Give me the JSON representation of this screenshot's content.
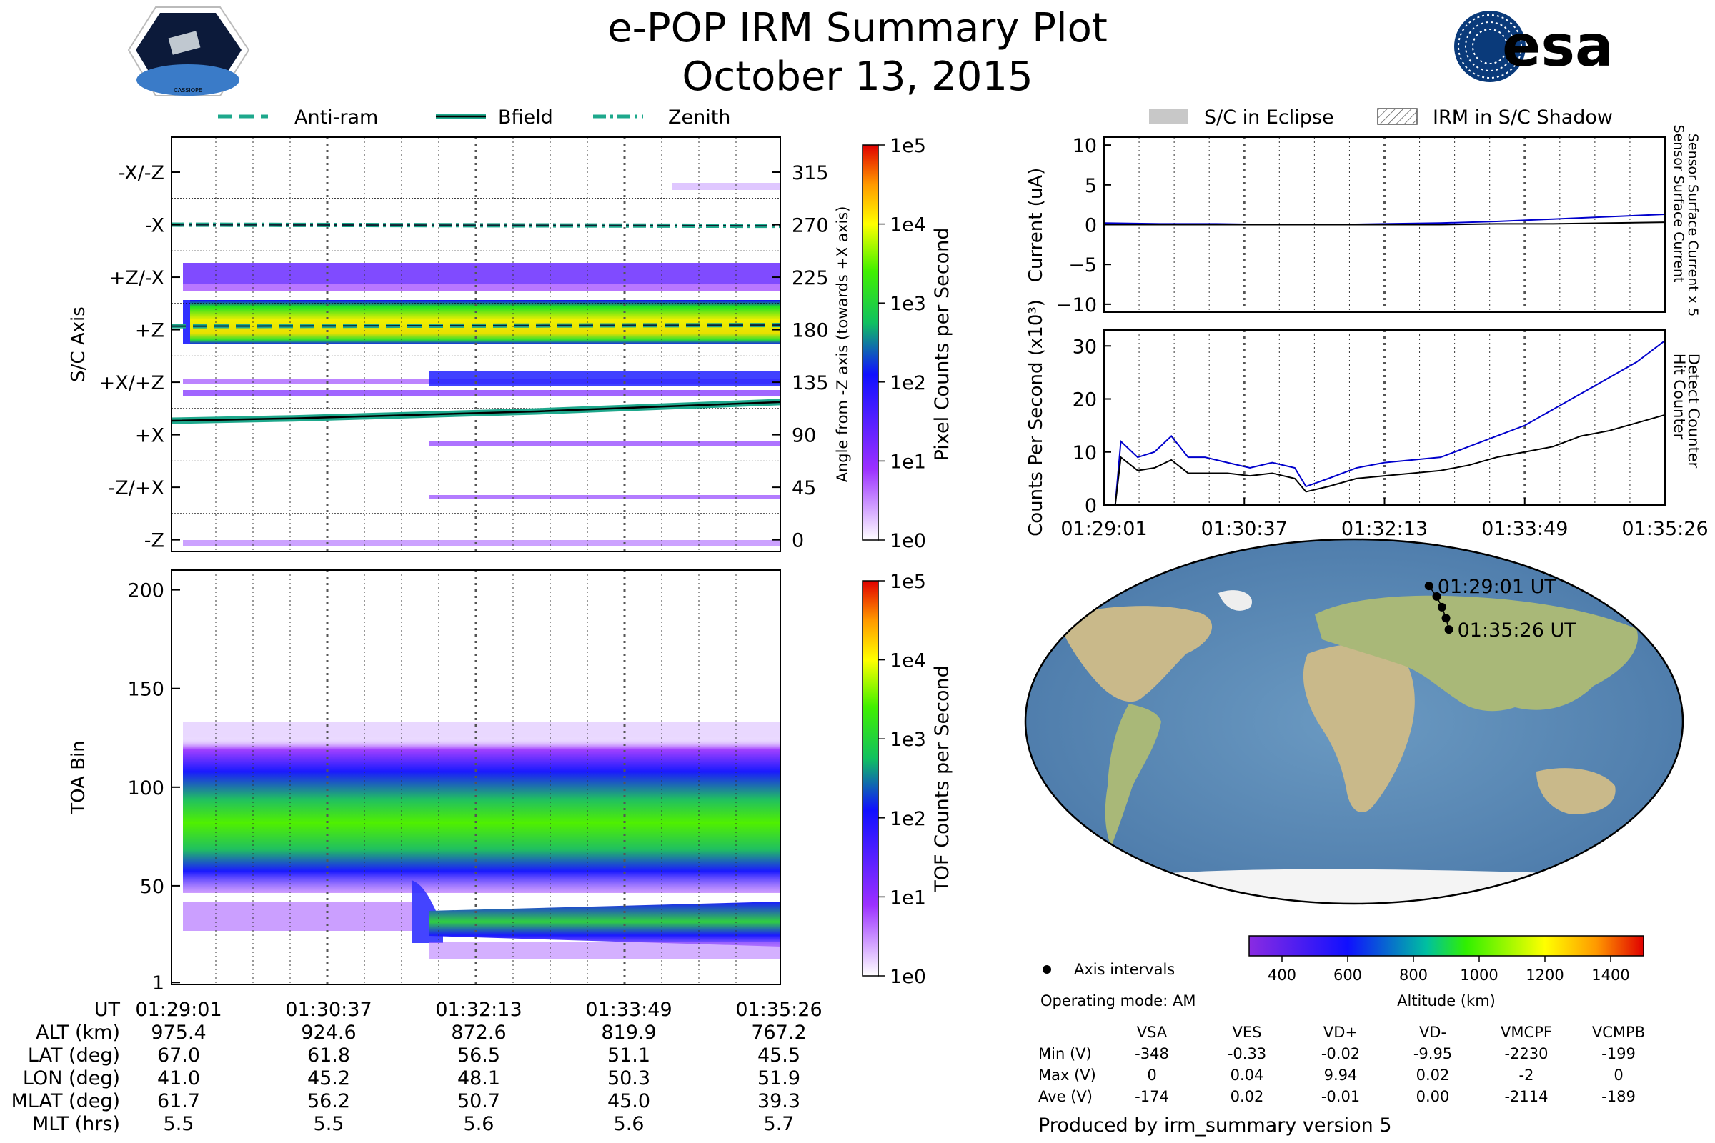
{
  "header": {
    "title": "e-POP IRM Summary Plot",
    "date": "October 13, 2015",
    "left_logo_text": "CASSIOPE",
    "right_logo_text": "esa"
  },
  "colors": {
    "antiram": "#1ea88c",
    "bfield": "#1ea88c",
    "zenith": "#1ea88c",
    "sensor_x5": "#0000cc",
    "detect": "#0000cc",
    "hit": "#000000",
    "eclipse": "#c8c8c8",
    "ocean": "#5f8fb8",
    "land": "#c9b98a"
  },
  "legend_left": {
    "antiram": "Anti-ram",
    "bfield": "Bfield",
    "zenith": "Zenith"
  },
  "legend_right": {
    "eclipse": "S/C in Eclipse",
    "shadow": "IRM in S/C Shadow"
  },
  "footer": {
    "axis_intervals": "Axis intervals",
    "operating_mode": "Operating mode: AM",
    "produced_by": "Produced by irm_summary version 5"
  },
  "ut_table": {
    "row_labels": [
      "UT",
      "ALT (km)",
      "LAT (deg)",
      "LON (deg)",
      "MLAT (deg)",
      "MLT (hrs)"
    ],
    "columns": [
      [
        "01:29:01",
        "975.4",
        "67.0",
        "41.0",
        "61.7",
        "5.5"
      ],
      [
        "01:30:37",
        "924.6",
        "61.8",
        "45.2",
        "56.2",
        "5.5"
      ],
      [
        "01:32:13",
        "872.6",
        "56.5",
        "48.1",
        "50.7",
        "5.6"
      ],
      [
        "01:33:49",
        "819.9",
        "51.1",
        "50.3",
        "45.0",
        "5.6"
      ],
      [
        "01:35:26",
        "767.2",
        "45.5",
        "51.9",
        "39.3",
        "5.7"
      ]
    ]
  },
  "voltage_table": {
    "headers": [
      "VSA",
      "VES",
      "VD+",
      "VD-",
      "VMCPF",
      "VCMPB"
    ],
    "rows": [
      {
        "label": "Min (V)",
        "values": [
          "-348",
          "-0.33",
          "-0.02",
          "-9.95",
          "-2230",
          "-199"
        ]
      },
      {
        "label": "Max (V)",
        "values": [
          "0",
          "0.04",
          "9.94",
          "0.02",
          "-2",
          "0"
        ]
      },
      {
        "label": "Ave (V)",
        "values": [
          "-174",
          "0.02",
          "-0.01",
          "0.00",
          "-2114",
          "-189"
        ]
      }
    ]
  },
  "chart_data": [
    {
      "id": "sc_axis",
      "type": "heatmap",
      "ylabel": "S/C Axis",
      "ylabel_right": "Angle from -Z axis (towards +X axis)",
      "ylim": [
        -10,
        345
      ],
      "left_ticks": [
        {
          "v": 315,
          "label": "-X/-Z"
        },
        {
          "v": 270,
          "label": "-X"
        },
        {
          "v": 225,
          "label": "+Z/-X"
        },
        {
          "v": 180,
          "label": "+Z"
        },
        {
          "v": 135,
          "label": "+X/+Z"
        },
        {
          "v": 90,
          "label": "+X"
        },
        {
          "v": 45,
          "label": "-Z/+X"
        },
        {
          "v": 0,
          "label": "-Z"
        }
      ],
      "right_ticks": [
        315,
        270,
        225,
        180,
        135,
        90,
        45,
        0
      ],
      "dotted_lines": [
        292.5,
        247.5,
        202.5,
        157.5,
        112.5,
        67.5,
        22.5
      ],
      "colorbar_label": "Pixel Counts per Second",
      "colorbar_ticks": [
        "1e5",
        "1e4",
        "1e3",
        "1e2",
        "1e1",
        "1e0"
      ],
      "series": [
        {
          "name": "Zenith",
          "style": "dashdot",
          "x": [
            0,
            1
          ],
          "y": [
            270,
            269
          ]
        },
        {
          "name": "Anti-ram",
          "style": "dashed",
          "x": [
            0,
            1
          ],
          "y": [
            183,
            184
          ]
        },
        {
          "name": "Bfield",
          "style": "solid",
          "x": [
            0,
            0.2,
            0.4,
            0.6,
            0.8,
            1
          ],
          "y": [
            102,
            104,
            107,
            110,
            114,
            118
          ]
        }
      ]
    },
    {
      "id": "toa",
      "type": "heatmap",
      "ylabel": "TOA Bin",
      "ylim": [
        1,
        210
      ],
      "y_ticks": [
        200,
        150,
        100,
        50,
        1
      ],
      "colorbar_label": "TOF Counts per Second",
      "colorbar_ticks": [
        "1e5",
        "1e4",
        "1e3",
        "1e2",
        "1e1",
        "1e0"
      ]
    },
    {
      "id": "current",
      "type": "line",
      "ylabel": "Current (uA)",
      "ylim": [
        -11,
        11
      ],
      "y_ticks": [
        10,
        5,
        0,
        -5,
        -10
      ],
      "right_labels": [
        "Sensor Surface Current x 5",
        "Sensor Surface Current"
      ],
      "x": [
        0,
        0.1,
        0.2,
        0.3,
        0.4,
        0.5,
        0.6,
        0.7,
        0.8,
        0.9,
        1.0
      ],
      "series": [
        {
          "name": "Sensor Surface Current x 5",
          "values": [
            0.2,
            0.1,
            0.1,
            0.0,
            0.0,
            0.1,
            0.2,
            0.4,
            0.7,
            1.0,
            1.3
          ]
        },
        {
          "name": "Sensor Surface Current",
          "values": [
            0.0,
            0.0,
            0.0,
            0.0,
            0.0,
            0.0,
            0.0,
            0.1,
            0.1,
            0.2,
            0.3
          ]
        }
      ]
    },
    {
      "id": "counts",
      "type": "line",
      "ylabel": "Counts Per Second (x10³)",
      "ylim": [
        0,
        33
      ],
      "y_ticks": [
        30,
        20,
        10,
        0
      ],
      "right_labels": [
        "Detect Counter",
        "Hit Counter"
      ],
      "x_ticks": [
        "01:29:01",
        "01:30:37",
        "01:32:13",
        "01:33:49",
        "01:35:26"
      ],
      "x": [
        0,
        0.02,
        0.03,
        0.06,
        0.09,
        0.12,
        0.15,
        0.18,
        0.22,
        0.26,
        0.3,
        0.34,
        0.36,
        0.4,
        0.45,
        0.5,
        0.55,
        0.6,
        0.65,
        0.7,
        0.75,
        0.8,
        0.85,
        0.9,
        0.95,
        1.0
      ],
      "series": [
        {
          "name": "Detect Counter",
          "values": [
            0,
            0,
            12,
            9,
            10,
            13,
            9,
            9,
            8,
            7,
            8,
            7,
            3.5,
            5,
            7,
            8,
            8.5,
            9,
            11,
            13,
            15,
            18,
            21,
            24,
            27,
            31
          ]
        },
        {
          "name": "Hit Counter",
          "values": [
            0,
            0,
            9,
            6.5,
            7,
            8.5,
            6,
            6,
            6,
            5.5,
            6,
            5,
            2.5,
            3.5,
            5,
            5.5,
            6,
            6.5,
            7.5,
            9,
            10,
            11,
            13,
            14,
            15.5,
            17
          ]
        }
      ]
    },
    {
      "id": "map",
      "type": "scatter",
      "start_label": "01:29:01 UT",
      "end_label": "01:35:26 UT",
      "lon": [
        41.0,
        45.2,
        48.1,
        50.3,
        51.9
      ],
      "lat": [
        67.0,
        61.8,
        56.5,
        51.1,
        45.5
      ],
      "colorbar_label": "Altitude (km)",
      "colorbar_ticks": [
        "400",
        "600",
        "800",
        "1000",
        "1200",
        "1400"
      ],
      "colorbar_range": [
        300,
        1500
      ]
    }
  ]
}
